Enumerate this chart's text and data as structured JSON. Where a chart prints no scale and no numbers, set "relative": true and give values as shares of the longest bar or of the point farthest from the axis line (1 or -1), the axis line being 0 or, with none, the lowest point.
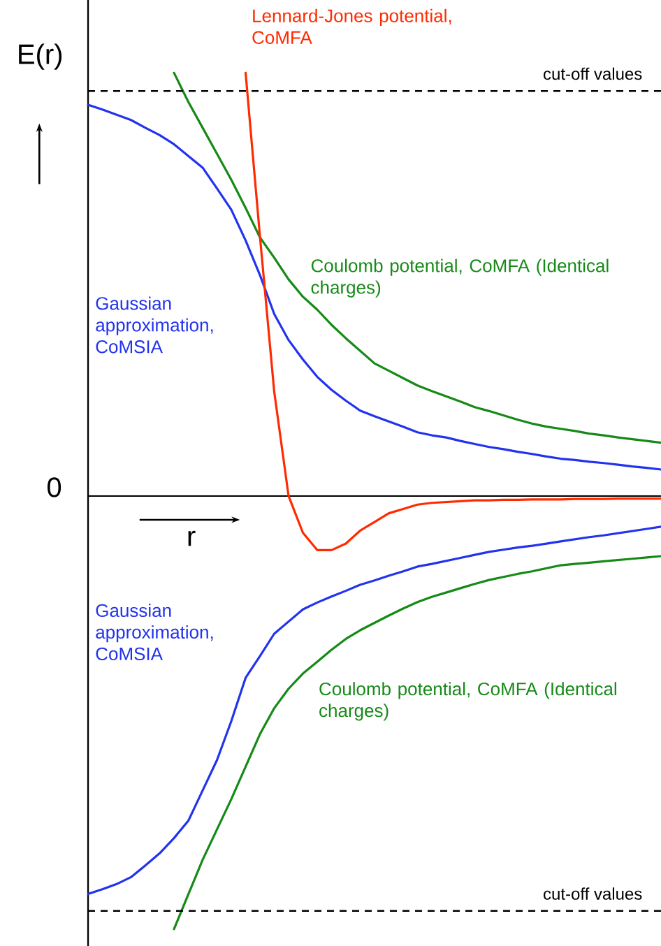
{
  "chart_data": {
    "type": "line",
    "relative": true,
    "xlabel": "r",
    "ylabel": "E(r)",
    "categories": [
      null,
      null,
      null,
      null,
      null,
      null,
      null,
      null,
      null,
      null,
      null,
      null,
      null,
      null,
      null,
      null,
      null,
      null,
      null,
      null,
      null,
      null,
      null,
      null,
      null,
      null,
      null,
      null,
      null,
      null,
      null,
      null,
      null,
      null,
      null,
      null,
      null,
      null,
      null,
      null,
      null
    ],
    "annotations": [
      "0"
    ],
    "ref_lines": [
      {
        "axis": "y",
        "value": 0.935,
        "label": "cut-off values",
        "line_style": "dashed",
        "color": "#000000"
      },
      {
        "axis": "y",
        "value": -0.958,
        "label": "cut-off values",
        "line_style": "dashed",
        "color": "#000000"
      }
    ],
    "series": [
      {
        "name": "Gaussian approximation, CoMSIA",
        "color": "#2233ee",
        "values": [
          0.903,
          0.892,
          0.88,
          0.868,
          0.85,
          0.833,
          0.812,
          0.785,
          0.758,
          0.71,
          0.661,
          0.59,
          0.51,
          0.42,
          0.36,
          0.315,
          0.275,
          0.245,
          0.22,
          0.197,
          0.184,
          0.172,
          0.16,
          0.147,
          0.14,
          0.135,
          0.127,
          0.12,
          0.113,
          0.108,
          0.102,
          0.097,
          0.091,
          0.086,
          0.083,
          0.079,
          0.076,
          0.072,
          0.068,
          0.065,
          0.061
        ]
      },
      {
        "name": "Coulomb potential, CoMFA (Identical charges)",
        "color": "#168a16",
        "values": [
          null,
          null,
          null,
          null,
          null,
          null,
          0.977,
          0.91,
          0.85,
          0.79,
          0.73,
          0.665,
          0.597,
          0.55,
          0.5,
          0.46,
          0.43,
          0.395,
          0.364,
          0.335,
          0.306,
          0.289,
          0.272,
          0.255,
          0.242,
          0.23,
          0.218,
          0.205,
          0.196,
          0.186,
          0.176,
          0.167,
          0.16,
          0.155,
          0.15,
          0.144,
          0.14,
          0.135,
          0.131,
          0.127,
          0.123
        ]
      },
      {
        "name": "Lennard-Jones potential, CoMFA",
        "color": "#ff2a00",
        "values": [
          null,
          null,
          null,
          null,
          null,
          null,
          null,
          null,
          null,
          null,
          null,
          0.977,
          0.6,
          0.24,
          0,
          -0.085,
          -0.125,
          -0.125,
          -0.11,
          -0.08,
          -0.06,
          -0.04,
          -0.03,
          -0.02,
          -0.016,
          -0.014,
          -0.012,
          -0.01,
          -0.01,
          -0.009,
          -0.009,
          -0.008,
          -0.008,
          -0.008,
          -0.007,
          -0.007,
          -0.007,
          -0.006,
          -0.006,
          -0.006,
          -0.006
        ]
      },
      {
        "name": "Gaussian approximation, CoMSIA",
        "color": "#2233ee",
        "values": [
          -0.919,
          -0.908,
          -0.896,
          -0.88,
          -0.853,
          -0.825,
          -0.79,
          -0.75,
          -0.68,
          -0.61,
          -0.52,
          -0.42,
          -0.37,
          -0.318,
          -0.29,
          -0.262,
          -0.246,
          -0.232,
          -0.219,
          -0.205,
          -0.195,
          -0.184,
          -0.174,
          -0.163,
          -0.157,
          -0.15,
          -0.143,
          -0.136,
          -0.129,
          -0.124,
          -0.119,
          -0.115,
          -0.11,
          -0.105,
          -0.1,
          -0.095,
          -0.091,
          -0.086,
          -0.081,
          -0.076,
          -0.071
        ]
      },
      {
        "name": "Coulomb potential, CoMFA (Identical charges)",
        "color": "#168a16",
        "values": [
          null,
          null,
          null,
          null,
          null,
          null,
          -1,
          -0.92,
          -0.84,
          -0.77,
          -0.7,
          -0.625,
          -0.55,
          -0.49,
          -0.445,
          -0.41,
          -0.383,
          -0.355,
          -0.33,
          -0.31,
          -0.293,
          -0.276,
          -0.26,
          -0.245,
          -0.233,
          -0.223,
          -0.213,
          -0.203,
          -0.194,
          -0.187,
          -0.18,
          -0.174,
          -0.167,
          -0.16,
          -0.157,
          -0.154,
          -0.151,
          -0.148,
          -0.145,
          -0.142,
          -0.139
        ]
      }
    ]
  }
}
